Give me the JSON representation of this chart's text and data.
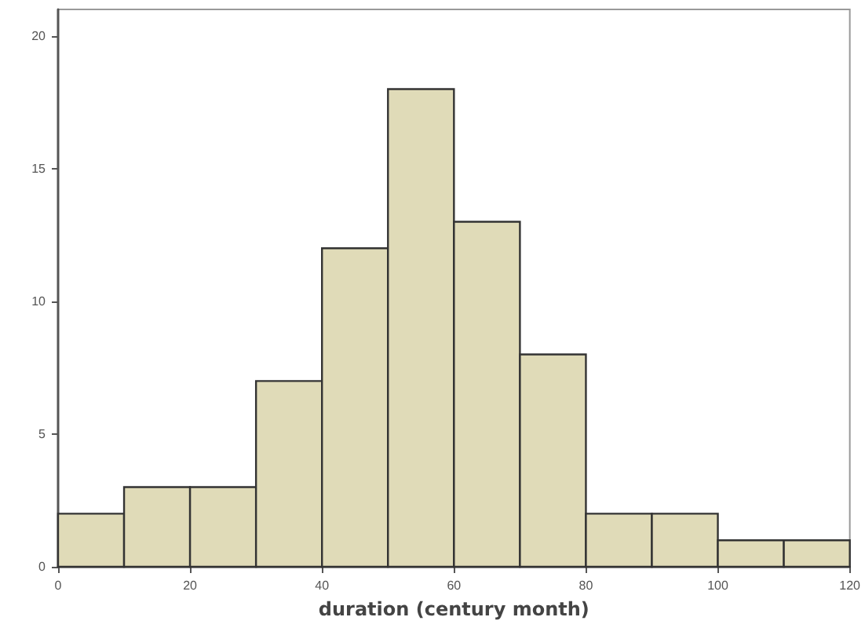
{
  "chart_data": {
    "type": "histogram",
    "xlabel": "duration (century month)",
    "bins": [
      0,
      10,
      20,
      30,
      40,
      50,
      60,
      70,
      80,
      90,
      100,
      110,
      120
    ],
    "values": [
      2,
      3,
      3,
      7,
      12,
      18,
      13,
      8,
      2,
      2,
      1,
      1
    ],
    "color": "#e0dbb8",
    "xlim": [
      0,
      120
    ],
    "xticks": [
      0,
      20,
      40,
      60,
      80,
      100,
      120
    ],
    "ylim": [
      0,
      21
    ],
    "yticks": [
      0,
      5,
      10,
      15,
      20
    ],
    "grid": false
  }
}
